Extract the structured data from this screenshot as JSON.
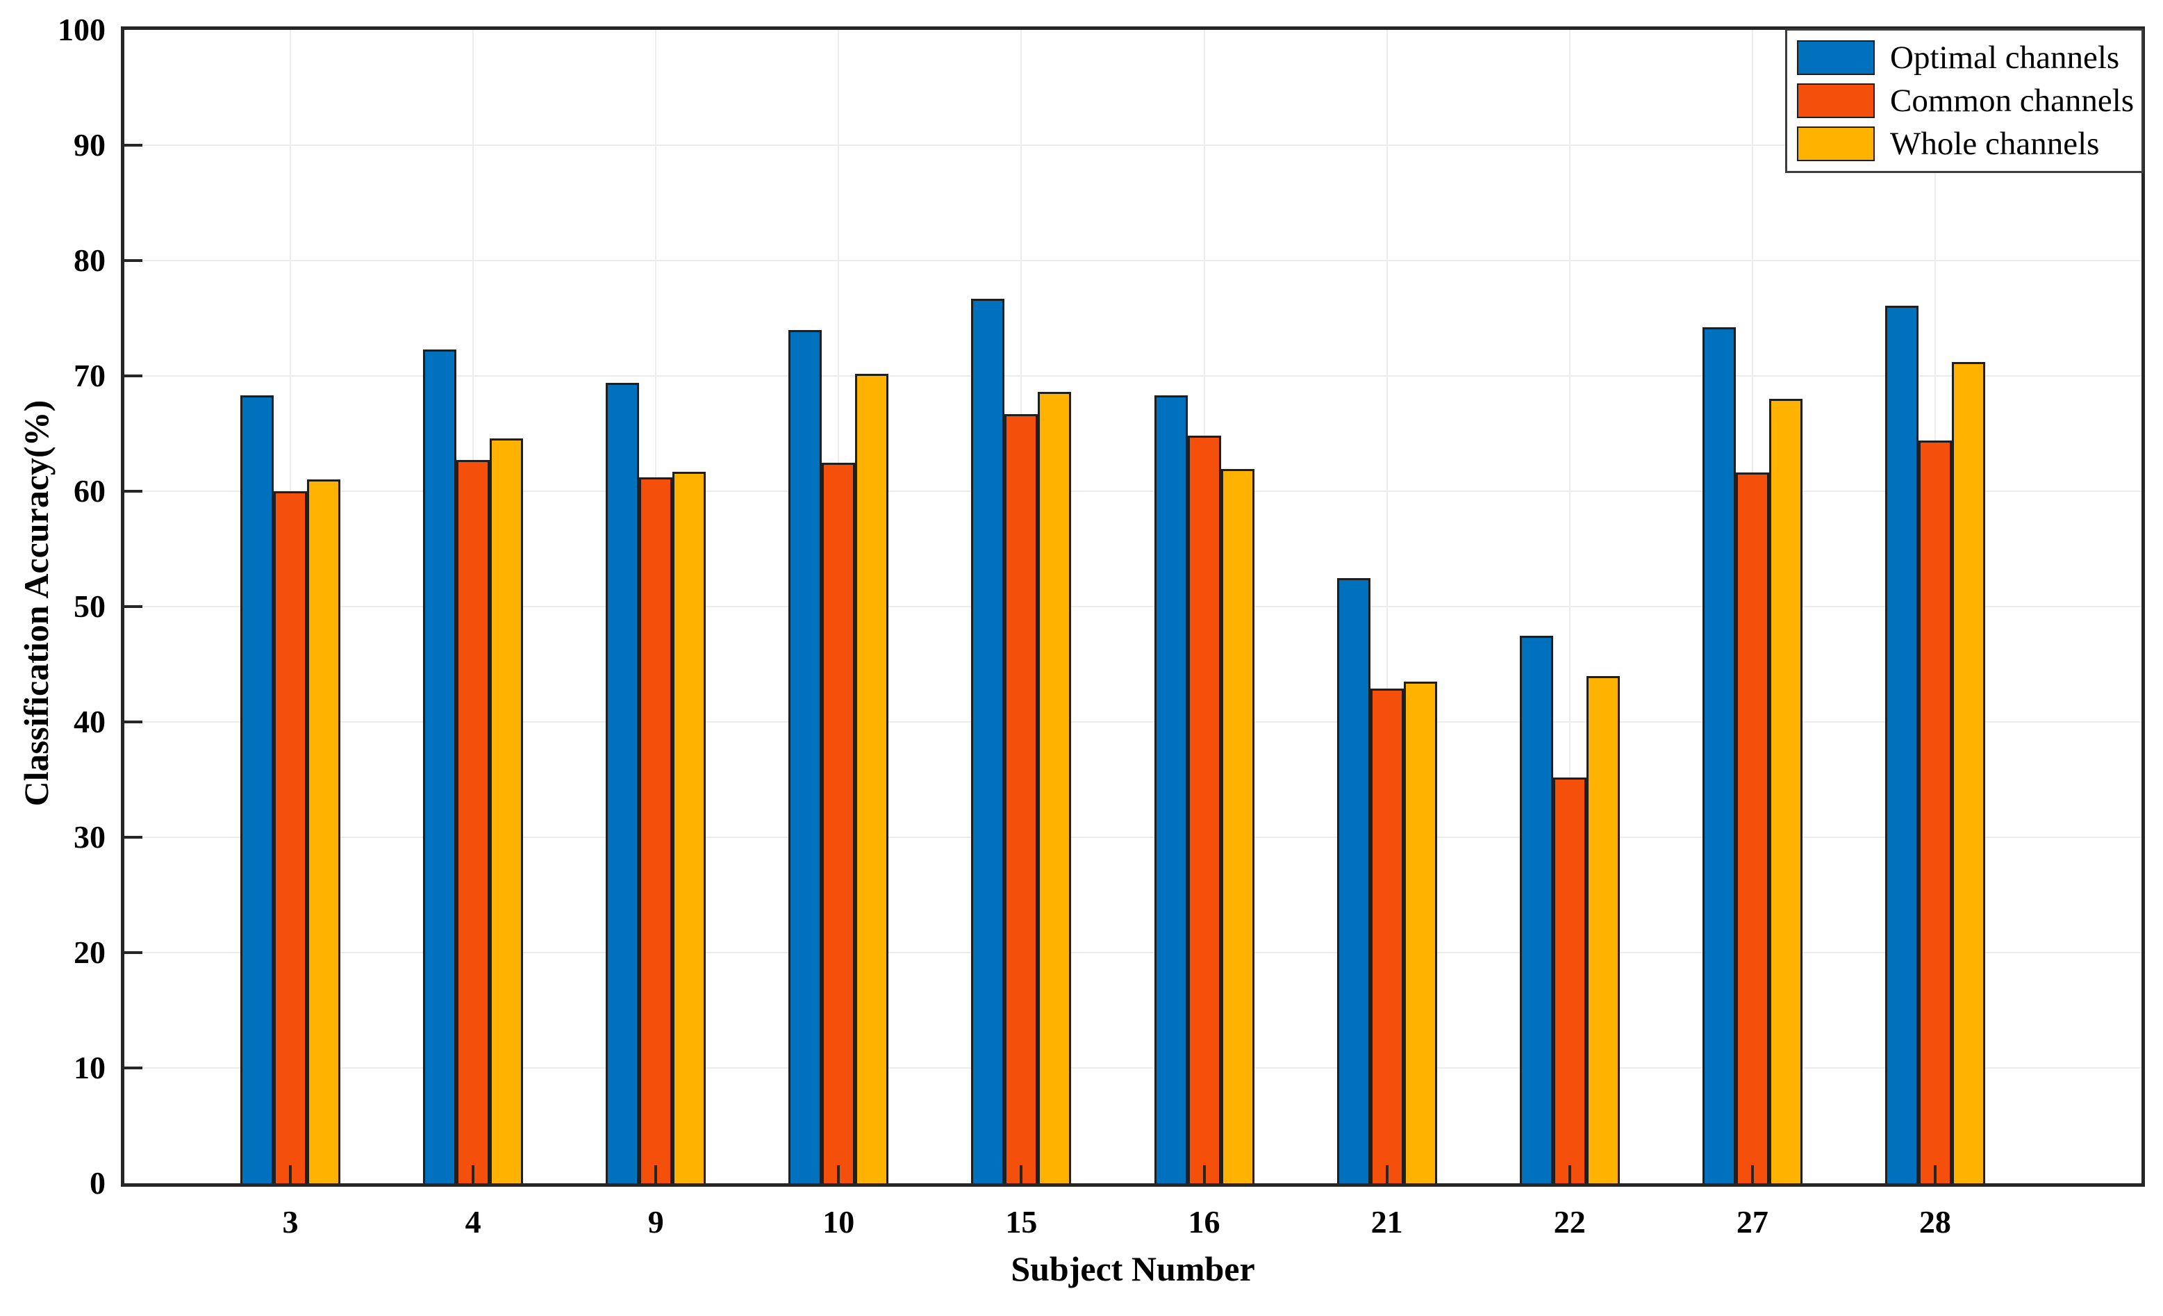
{
  "chart_data": {
    "type": "bar",
    "title": "",
    "xlabel": "Subject Number",
    "ylabel": "Classification Accuracy(%)",
    "categories": [
      "3",
      "4",
      "9",
      "10",
      "15",
      "16",
      "21",
      "22",
      "27",
      "28"
    ],
    "series": [
      {
        "name": "Optimal channels",
        "color": "#0072bd",
        "values": [
          68.3,
          72.3,
          69.4,
          74.0,
          76.7,
          68.3,
          52.5,
          47.5,
          74.2,
          76.1
        ]
      },
      {
        "name": "Common channels",
        "color": "#f4500c",
        "values": [
          60.0,
          62.7,
          61.2,
          62.5,
          66.7,
          64.8,
          42.9,
          35.2,
          61.6,
          64.4
        ]
      },
      {
        "name": "Whole channels",
        "color": "#ffb300",
        "values": [
          61.0,
          64.6,
          61.7,
          70.2,
          68.6,
          61.9,
          43.5,
          44.0,
          68.0,
          71.2
        ]
      }
    ],
    "ylim": [
      0,
      100
    ],
    "yticks": [
      0,
      10,
      20,
      30,
      40,
      50,
      60,
      70,
      80,
      90,
      100
    ],
    "grid": true,
    "legend_position": "top-right",
    "bar_edge_color": "#1f1f1f",
    "axis_color": "#262626",
    "grid_color": "#ececec"
  }
}
